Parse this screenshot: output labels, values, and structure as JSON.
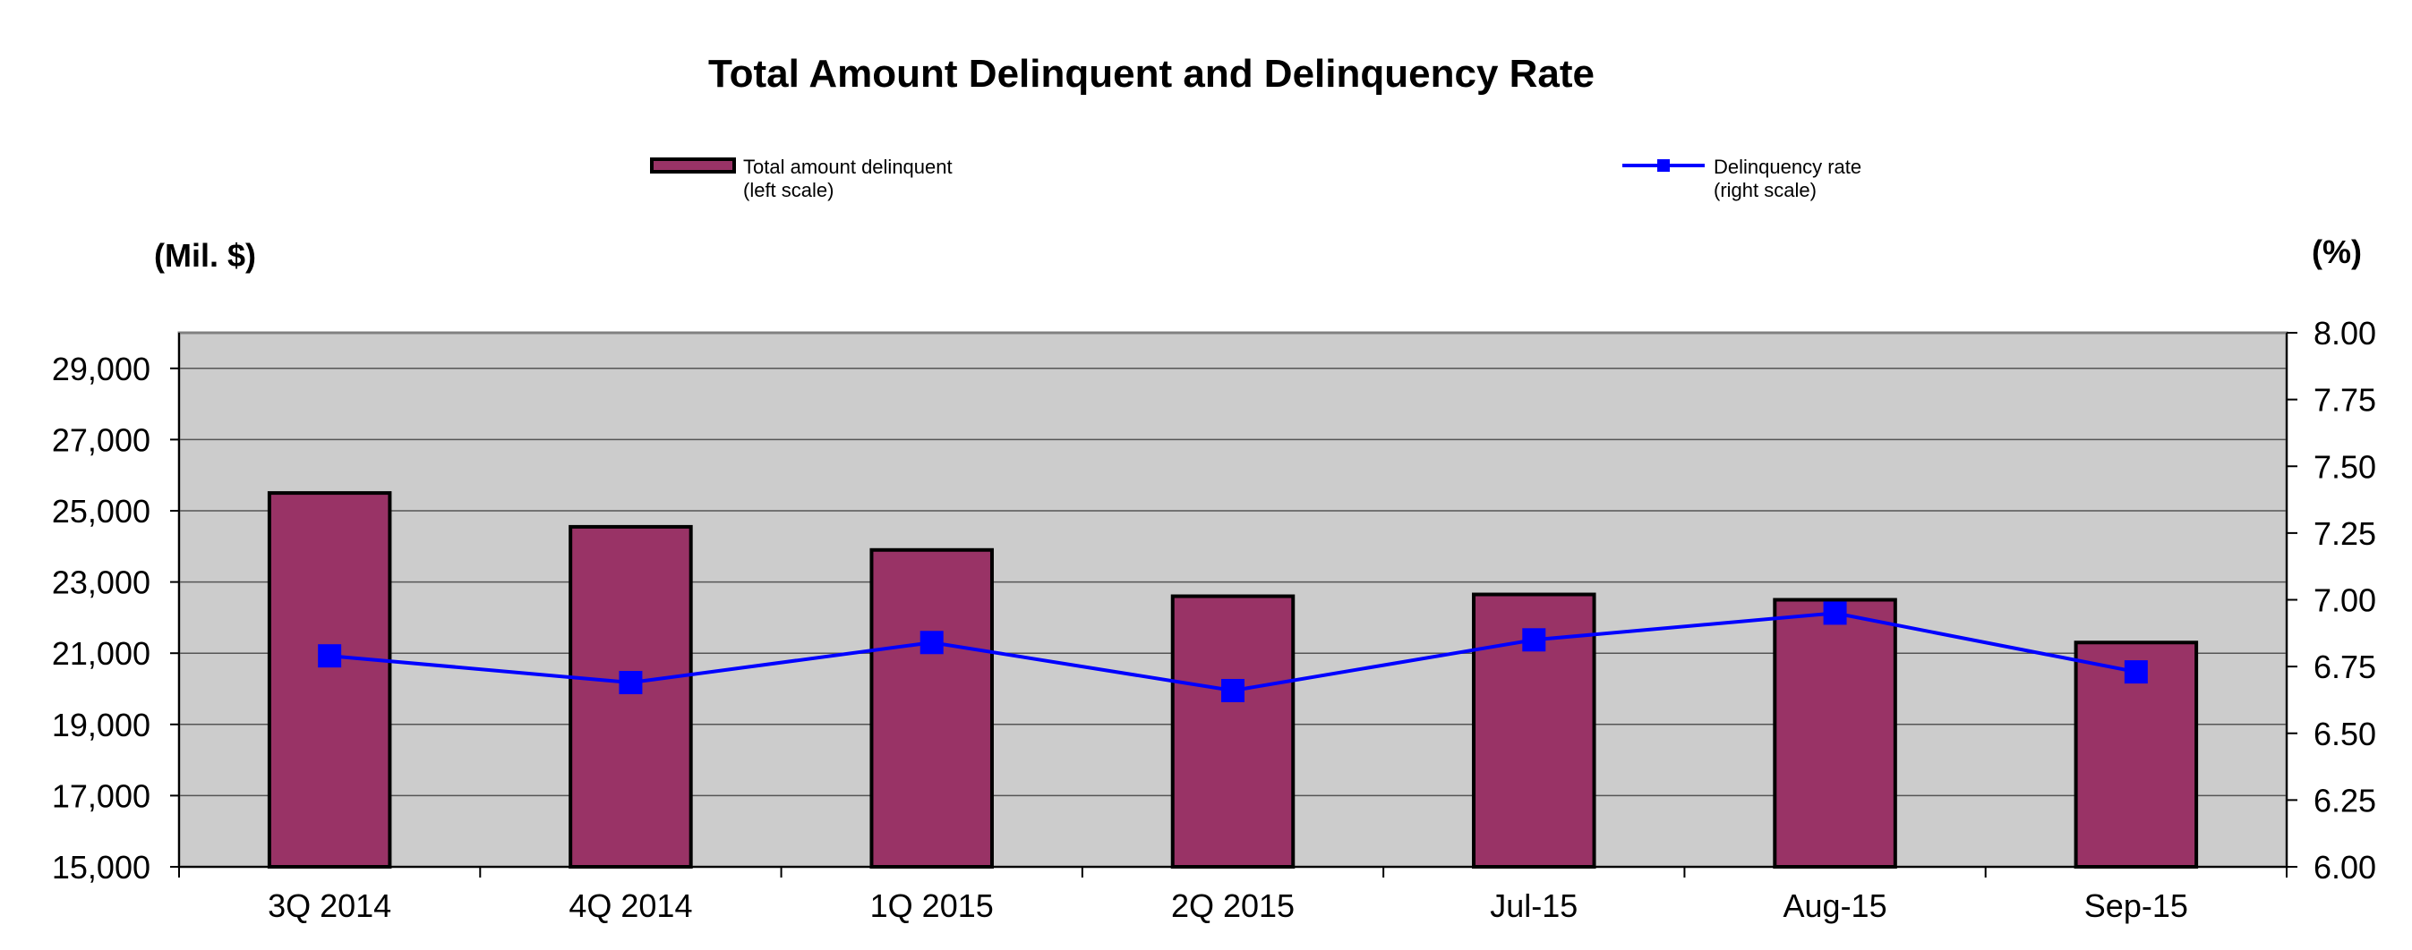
{
  "chart_data": {
    "type": "bar",
    "title": "Total Amount Delinquent and Delinquency Rate",
    "categories": [
      "3Q 2014",
      "4Q 2014",
      "1Q 2015",
      "2Q 2015",
      "Jul-15",
      "Aug-15",
      "Sep-15"
    ],
    "series": [
      {
        "name": "Total amount delinquent",
        "name_note": "(left scale)",
        "type": "bar",
        "axis": "left",
        "color": "#993366",
        "values": [
          25500,
          24550,
          23900,
          22600,
          22650,
          22500,
          21300
        ]
      },
      {
        "name": "Delinquency rate",
        "name_note": "(right scale)",
        "type": "line",
        "axis": "right",
        "color": "#0000ff",
        "values": [
          6.79,
          6.69,
          6.84,
          6.66,
          6.85,
          6.95,
          6.73
        ]
      }
    ],
    "left_axis": {
      "unit_label": "(Mil. $)",
      "ylim": [
        15000,
        30000
      ],
      "ticks": [
        15000,
        17000,
        19000,
        21000,
        23000,
        25000,
        27000,
        29000
      ],
      "tick_labels": [
        "15,000",
        "17,000",
        "19,000",
        "21,000",
        "23,000",
        "25,000",
        "27,000",
        "29,000"
      ]
    },
    "right_axis": {
      "unit_label": "(%)",
      "ylim": [
        6.0,
        8.0
      ],
      "ticks": [
        6.0,
        6.25,
        6.5,
        6.75,
        7.0,
        7.25,
        7.5,
        7.75,
        8.0
      ],
      "tick_labels": [
        "6.00",
        "6.25",
        "6.50",
        "6.75",
        "7.00",
        "7.25",
        "7.50",
        "7.75",
        "8.00"
      ]
    },
    "grid": true,
    "legend_position": "top",
    "plot_background": "#cccccc"
  }
}
